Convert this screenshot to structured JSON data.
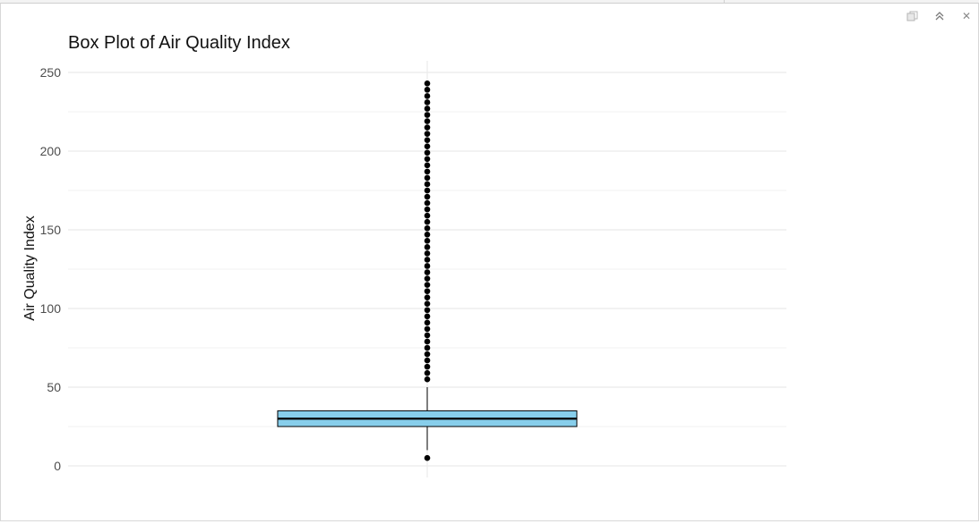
{
  "window": {
    "icons": [
      "restore-icon",
      "collapse-icon",
      "close-icon"
    ],
    "close_glyph": "✕",
    "collapse_glyph": "︽"
  },
  "chart_data": {
    "type": "boxplot",
    "title": "Box Plot of Air Quality Index",
    "xlabel": "",
    "ylabel": "Air Quality Index",
    "ylim": [
      -6,
      251
    ],
    "yticks": [
      0,
      50,
      100,
      150,
      200,
      250
    ],
    "minor_gridlines": [
      25,
      75,
      125,
      175,
      225
    ],
    "grid": true,
    "fill_color": "#87CEEB",
    "box": {
      "q1": 25,
      "median": 30,
      "q3": 35,
      "whisker_low": 10,
      "whisker_high": 50
    },
    "outliers": [
      5,
      55,
      59,
      63,
      67,
      71,
      75,
      79,
      83,
      87,
      91,
      95,
      99,
      103,
      107,
      111,
      115,
      119,
      123,
      127,
      131,
      135,
      139,
      143,
      147,
      151,
      155,
      159,
      163,
      167,
      171,
      175,
      179,
      183,
      187,
      191,
      195,
      199,
      203,
      207,
      211,
      215,
      219,
      223,
      227,
      231,
      235,
      239,
      243
    ]
  }
}
